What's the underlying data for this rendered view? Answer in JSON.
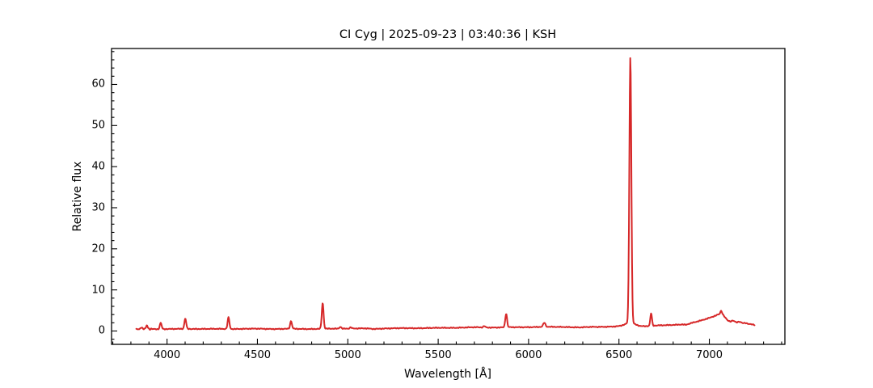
{
  "figure": {
    "background_color": "#ffffff",
    "frame_color": "#000000"
  },
  "chart_data": {
    "type": "line",
    "title": "CI Cyg | 2025-09-23 | 03:40:36 | KSH",
    "xlabel": "Wavelength [Å]",
    "ylabel": "Relative flux",
    "xlim": [
      3693,
      7418
    ],
    "ylim": [
      -3.25,
      68.75
    ],
    "x_major_ticks": [
      4000,
      4500,
      5000,
      5500,
      6000,
      6500,
      7000
    ],
    "y_major_ticks": [
      0,
      10,
      20,
      30,
      40,
      50,
      60
    ],
    "x_minor_step": 100,
    "y_minor_step": 2,
    "grid": false,
    "legend": "none",
    "line_color": "#d62728",
    "line_width": 2,
    "data_wavelength_range": [
      3830,
      7252
    ],
    "sampling_step_angstrom": 2.5,
    "continuum_points": [
      [
        3830,
        0.35
      ],
      [
        3860,
        0.45
      ],
      [
        3900,
        0.5
      ],
      [
        3950,
        0.45
      ],
      [
        4000,
        0.5
      ],
      [
        4100,
        0.5
      ],
      [
        4200,
        0.52
      ],
      [
        4300,
        0.5
      ],
      [
        4400,
        0.52
      ],
      [
        4500,
        0.55
      ],
      [
        4600,
        0.5
      ],
      [
        4700,
        0.52
      ],
      [
        4800,
        0.5
      ],
      [
        4900,
        0.55
      ],
      [
        5000,
        0.6
      ],
      [
        5100,
        0.62
      ],
      [
        5141,
        0.5
      ],
      [
        5200,
        0.62
      ],
      [
        5300,
        0.68
      ],
      [
        5400,
        0.7
      ],
      [
        5500,
        0.75
      ],
      [
        5600,
        0.8
      ],
      [
        5700,
        0.9
      ],
      [
        5800,
        0.85
      ],
      [
        5900,
        0.9
      ],
      [
        6000,
        0.95
      ],
      [
        6100,
        1.0
      ],
      [
        6200,
        1.0
      ],
      [
        6280,
        0.85
      ],
      [
        6350,
        1.0
      ],
      [
        6450,
        1.05
      ],
      [
        6500,
        1.1
      ],
      [
        6560,
        1.15
      ],
      [
        6620,
        1.1
      ],
      [
        6700,
        1.3
      ],
      [
        6800,
        1.5
      ],
      [
        6850,
        1.6
      ],
      [
        6870,
        1.5
      ],
      [
        6900,
        1.9
      ],
      [
        6950,
        2.5
      ],
      [
        7000,
        3.2
      ],
      [
        7030,
        3.7
      ],
      [
        7055,
        4.1
      ],
      [
        7070,
        4.3
      ],
      [
        7085,
        3.4
      ],
      [
        7100,
        2.6
      ],
      [
        7115,
        2.3
      ],
      [
        7130,
        2.5
      ],
      [
        7150,
        2.1
      ],
      [
        7165,
        2.3
      ],
      [
        7185,
        1.9
      ],
      [
        7200,
        2.0
      ],
      [
        7220,
        1.7
      ],
      [
        7240,
        1.6
      ],
      [
        7252,
        1.5
      ]
    ],
    "emission_lines": [
      {
        "wavelength": 3858,
        "peak_flux": 0.95,
        "sigma": 4.0
      },
      {
        "wavelength": 3889,
        "peak_flux": 1.35,
        "sigma": 4.0
      },
      {
        "wavelength": 3965,
        "peak_flux": 2.0,
        "sigma": 5.0
      },
      {
        "wavelength": 4101,
        "peak_flux": 3.0,
        "sigma": 5.0
      },
      {
        "wavelength": 4340,
        "peak_flux": 3.3,
        "sigma": 5.0
      },
      {
        "wavelength": 4686,
        "peak_flux": 2.4,
        "sigma": 5.0
      },
      {
        "wavelength": 4861,
        "peak_flux": 6.8,
        "sigma": 5.0
      },
      {
        "wavelength": 4959,
        "peak_flux": 1.05,
        "sigma": 5.0
      },
      {
        "wavelength": 5016,
        "peak_flux": 0.9,
        "sigma": 5.0
      },
      {
        "wavelength": 5755,
        "peak_flux": 1.2,
        "sigma": 5.0
      },
      {
        "wavelength": 5876,
        "peak_flux": 4.2,
        "sigma": 5.0
      },
      {
        "wavelength": 6087,
        "peak_flux": 2.0,
        "sigma": 6.0
      },
      {
        "wavelength": 6563,
        "peak_flux": 66.0,
        "sigma": 5.5,
        "wing_amplitude": 0.8,
        "wing_sigma": 30
      },
      {
        "wavelength": 6678,
        "peak_flux": 4.3,
        "sigma": 4.5
      },
      {
        "wavelength": 7065,
        "peak_flux": 4.9,
        "sigma": 4.0
      }
    ],
    "noise_amplitude": 0.05
  }
}
